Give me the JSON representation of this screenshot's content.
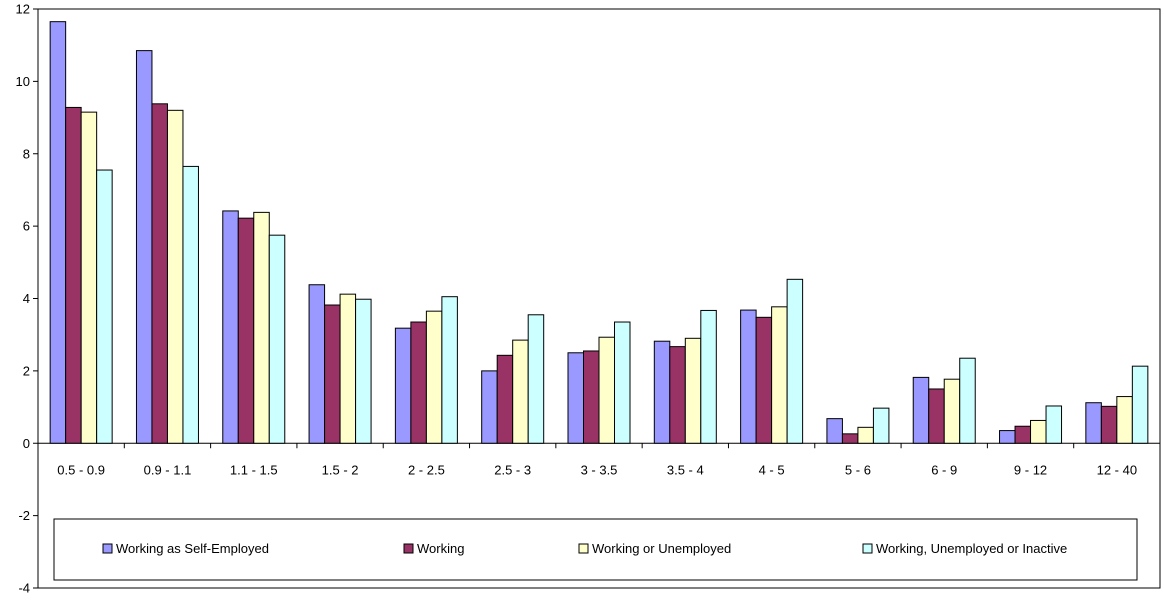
{
  "chart_data": {
    "type": "bar",
    "title": "",
    "xlabel": "",
    "ylabel": "",
    "ylim": [
      -4,
      12
    ],
    "y_ticks": [
      "-4",
      "-2",
      "0",
      "2",
      "4",
      "6",
      "8",
      "10",
      "12"
    ],
    "grid": false,
    "legend_position": "bottom-inside",
    "categories": [
      "0.5 - 0.9",
      "0.9 - 1.1",
      "1.1 - 1.5",
      "1.5 - 2",
      "2 - 2.5",
      "2.5 - 3",
      "3 - 3.5",
      "3.5 - 4",
      "4 - 5",
      "5 - 6",
      "6 - 9",
      "9 - 12",
      "12 - 40"
    ],
    "series": [
      {
        "name": "Working as Self-Employed",
        "color": "#9999ff",
        "values": [
          11.65,
          10.85,
          6.42,
          4.38,
          3.18,
          2.0,
          2.5,
          2.82,
          3.68,
          0.68,
          1.82,
          0.35,
          1.12
        ]
      },
      {
        "name": "Working",
        "color": "#993366",
        "values": [
          9.28,
          9.38,
          6.22,
          3.82,
          3.35,
          2.43,
          2.55,
          2.67,
          3.48,
          0.26,
          1.5,
          0.47,
          1.02
        ]
      },
      {
        "name": "Working or Unemployed",
        "color": "#ffffcc",
        "values": [
          9.15,
          9.2,
          6.38,
          4.12,
          3.65,
          2.85,
          2.93,
          2.9,
          3.77,
          0.44,
          1.77,
          0.63,
          1.29
        ]
      },
      {
        "name": "Working, Unemployed or Inactive",
        "color": "#ccffff",
        "values": [
          7.55,
          7.65,
          5.75,
          3.98,
          4.05,
          3.55,
          3.35,
          3.67,
          4.53,
          0.97,
          2.35,
          1.03,
          2.13
        ]
      }
    ]
  }
}
